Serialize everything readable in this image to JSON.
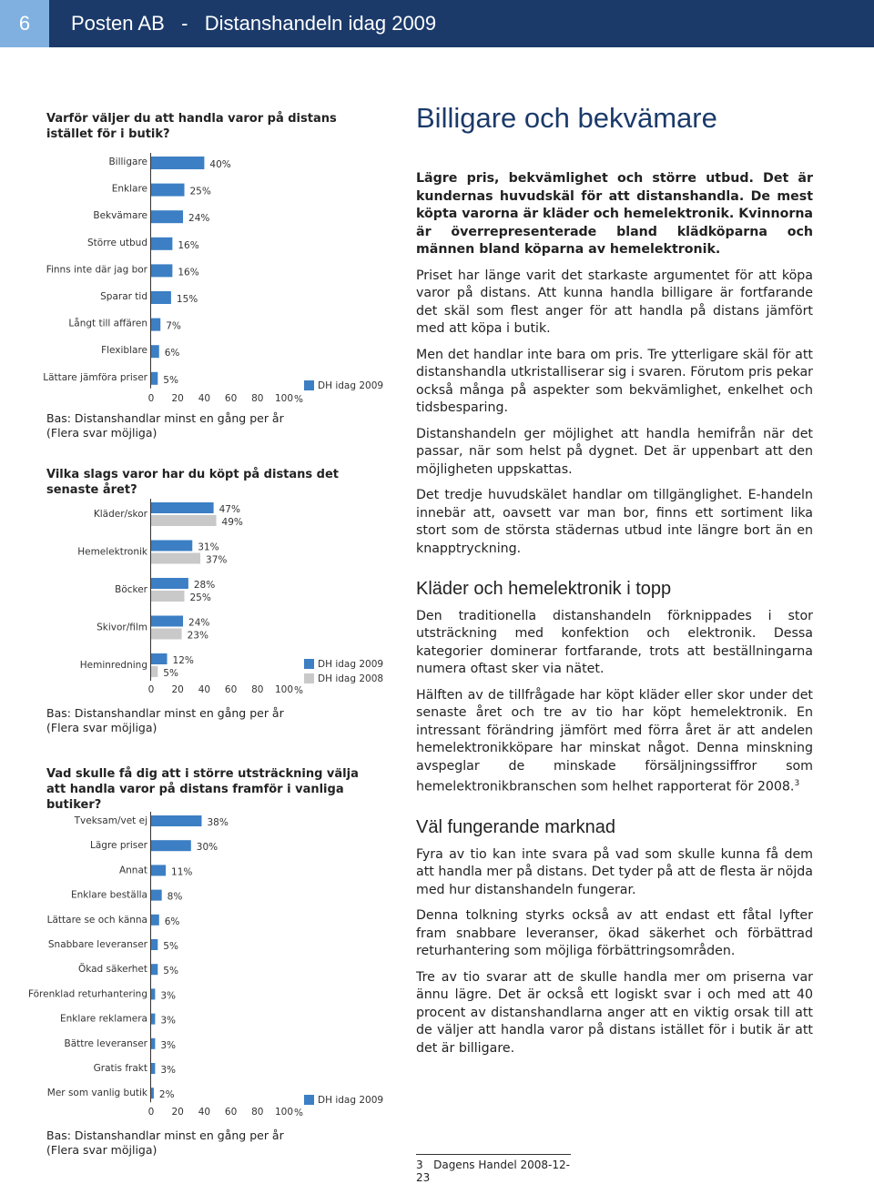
{
  "header": {
    "page_number": "6",
    "title": "Posten AB   -   Distanshandeln idag 2009"
  },
  "chart_data": [
    {
      "type": "bar",
      "orientation": "horizontal",
      "title": "Varför väljer du att handla varor på distans istället för i butik?",
      "categories": [
        "Billigare",
        "Enklare",
        "Bekvämare",
        "Större utbud",
        "Finns inte där jag bor",
        "Sparar tid",
        "Långt till affären",
        "Flexiblare",
        "Lättare jämföra priser"
      ],
      "series": [
        {
          "name": "DH idag 2009",
          "color": "#3c7fc4",
          "values": [
            40,
            25,
            24,
            16,
            16,
            15,
            7,
            6,
            5
          ],
          "value_labels": [
            "40%",
            "25%",
            "24%",
            "16%",
            "16%",
            "15%",
            "7%",
            "6%",
            "5%"
          ]
        }
      ],
      "xlim": [
        0,
        100
      ],
      "xticks": [
        0,
        20,
        40,
        60,
        80,
        100
      ],
      "x_unit": "%",
      "notes": [
        "Bas: Distanshandlar minst en gång per år",
        "(Flera svar möjliga)"
      ]
    },
    {
      "type": "bar",
      "orientation": "horizontal",
      "title": "Vilka slags varor har du köpt på distans det senaste året?",
      "categories": [
        "Kläder/skor",
        "Hemelektronik",
        "Böcker",
        "Skivor/film",
        "Heminredning"
      ],
      "series": [
        {
          "name": "DH idag 2009",
          "color": "#3c7fc4",
          "values": [
            47,
            31,
            28,
            24,
            12
          ],
          "value_labels": [
            "47%",
            "31%",
            "28%",
            "24%",
            "12%"
          ]
        },
        {
          "name": "DH idag 2008",
          "color": "#c9c9c9",
          "values": [
            49,
            37,
            25,
            23,
            5
          ],
          "value_labels": [
            "49%",
            "37%",
            "25%",
            "23%",
            "5%"
          ]
        }
      ],
      "xlim": [
        0,
        100
      ],
      "xticks": [
        0,
        20,
        40,
        60,
        80,
        100
      ],
      "x_unit": "%",
      "notes": [
        "Bas: Distanshandlar minst en gång per år",
        "(Flera svar möjliga)"
      ]
    },
    {
      "type": "bar",
      "orientation": "horizontal",
      "title": "Vad skulle få dig att i större utsträckning välja att handla varor på distans framför i vanliga butiker?",
      "categories": [
        "Tveksam/vet ej",
        "Lägre priser",
        "Annat",
        "Enklare beställa",
        "Lättare se och känna",
        "Snabbare leveranser",
        "Ökad säkerhet",
        "Förenklad returhantering",
        "Enklare reklamera",
        "Bättre leveranser",
        "Gratis frakt",
        "Mer som vanlig butik"
      ],
      "series": [
        {
          "name": "DH idag 2009",
          "color": "#3c7fc4",
          "values": [
            38,
            30,
            11,
            8,
            6,
            5,
            5,
            3,
            3,
            3,
            3,
            2
          ],
          "value_labels": [
            "38%",
            "30%",
            "11%",
            "8%",
            "6%",
            "5%",
            "5%",
            "3%",
            "3%",
            "3%",
            "3%",
            "2%"
          ]
        }
      ],
      "xlim": [
        0,
        100
      ],
      "xticks": [
        0,
        20,
        40,
        60,
        80,
        100
      ],
      "x_unit": "%",
      "notes": [
        "Bas: Distanshandlar minst en gång per år",
        "(Flera svar möjliga)"
      ]
    }
  ],
  "article": {
    "heading": "Billigare och bekvämare",
    "lead": "Lägre pris, bekvämlighet och större utbud. Det är kundernas huvudskäl för att distanshandla. De mest köpta varorna är kläder och hemelektronik. Kvinnorna är överrepresenterade bland klädköparna och männen bland köparna av hemelektronik.",
    "paragraphs": [
      "Priset har länge varit det starkaste argumentet för att köpa varor på distans. Att kunna handla billigare är fortfarande det skäl som flest anger för att handla på distans jämfört med att köpa i butik.",
      "Men det handlar inte bara om pris. Tre ytterligare skäl för att distanshandla utkristalliserar sig i svaren. Förutom pris pekar också många på aspekter som bekvämlighet, enkelhet och tidsbesparing.",
      "Distanshandeln ger möjlighet att handla hemifrån när det passar, när som helst på dygnet. Det är uppenbart att den möjligheten uppskattas.",
      "Det tredje huvudskälet handlar om tillgänglighet. E-handeln innebär att, oavsett var man bor, finns ett sortiment lika stort som de största städernas utbud inte längre bort än en knapptryckning."
    ],
    "sections": [
      {
        "heading": "Kläder och hemelektronik i topp",
        "paragraphs": [
          "Den traditionella distanshandeln förknippades i stor utsträckning med konfektion och elektronik. Dessa kategorier dominerar fortfarande, trots att beställningarna numera oftast sker via nätet.",
          "Hälften av de tillfrågade har köpt kläder eller skor under det senaste året och tre av tio har köpt hemelektronik. En intressant förändring jämfört med förra året är att andelen hemelektronikköpare har minskat något. Denna minskning avspeglar de minskade försäljningssiffror som hemelektronikbranschen som helhet rapporterat för 2008."
        ]
      },
      {
        "heading": "Väl fungerande marknad",
        "paragraphs": [
          "Fyra av tio kan inte svara på vad som skulle kunna få dem att handla mer på distans. Det tyder på att de flesta är nöjda med hur distanshandeln fungerar.",
          "Denna tolkning styrks också av att endast ett fåtal lyfter fram snabbare leveranser, ökad säkerhet och förbättrad returhantering som möjliga förbättringsområden.",
          "Tre av tio svarar att de skulle handla mer om priserna var ännu lägre. Det är också ett logiskt svar i och med att 40 procent av distanshandlarna anger att en viktig orsak till att de väljer att handla varor på distans istället för i butik är att det är billigare."
        ]
      }
    ]
  },
  "footnote": {
    "number": "3",
    "text": "Dagens Handel 2008-12-23"
  }
}
